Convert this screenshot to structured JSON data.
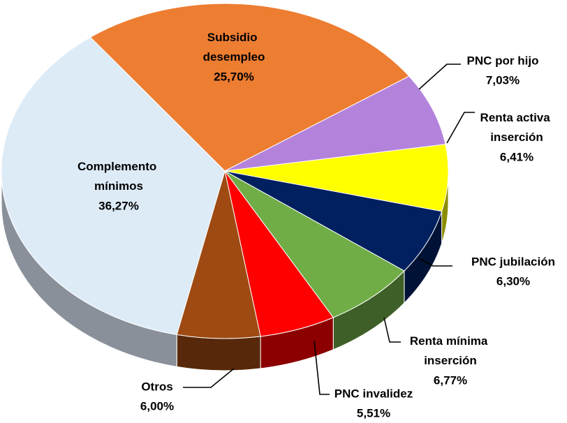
{
  "chart_data": {
    "type": "pie3d",
    "categories": [
      "Subsidio desempleo",
      "PNC por hijo",
      "Renta activa inserción",
      "PNC jubilación",
      "Renta mínima inserción",
      "PNC invalidez",
      "Otros",
      "Complemento mínimos"
    ],
    "values": [
      25.7,
      7.03,
      6.41,
      6.3,
      6.77,
      5.51,
      6.0,
      36.27
    ],
    "value_labels": [
      "25,70%",
      "7,03%",
      "6,41%",
      "6,30%",
      "6,77%",
      "5,51%",
      "6,00%",
      "36,27%"
    ],
    "colors": [
      "#ED7D31",
      "#B383DC",
      "#FFFF00",
      "#002060",
      "#70AD47",
      "#FF0000",
      "#9E4A12",
      "#DDEBF7"
    ]
  }
}
